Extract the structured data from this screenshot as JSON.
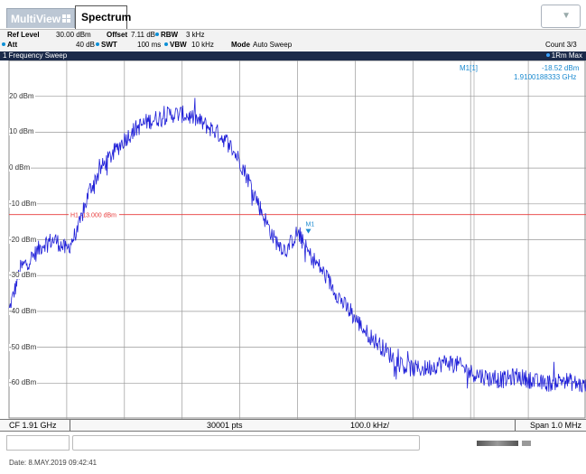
{
  "tabs": {
    "multiview_label": "MultiView",
    "spectrum_label": "Spectrum"
  },
  "settings": {
    "ref_level_label": "Ref Level",
    "ref_level_value": "30.00 dBm",
    "offset_label": "Offset",
    "offset_value": "7.11 dB",
    "rbw_label": "RBW",
    "rbw_value": "3 kHz",
    "att_label": "Att",
    "att_value": "40 dB",
    "swt_label": "SWT",
    "swt_value": "100 ms",
    "vbw_label": "VBW",
    "vbw_value": "10 kHz",
    "mode_label": "Mode",
    "mode_value": "Auto Sweep",
    "count_value": "Count 3/3"
  },
  "sweep": {
    "title": "1 Frequency Sweep",
    "trace_label": "1Rm Max"
  },
  "marker": {
    "id": "M1[1]",
    "level": "-18.52 dBm",
    "freq": "1.9100188333 GHz",
    "plot_label": "M1"
  },
  "threshold": {
    "label": "H1 -13.000 dBm",
    "value": -13
  },
  "y_labels": [
    "20 dBm",
    "10 dBm",
    "0 dBm",
    "-10 dBm",
    "-20 dBm",
    "-30 dBm",
    "-40 dBm",
    "-50 dBm",
    "-60 dBm"
  ],
  "footer": {
    "cf": "CF 1.91 GHz",
    "points": "30001 pts",
    "per_div": "100.0 kHz/",
    "span": "Span 1.0 MHz"
  },
  "status": {
    "date": "Date: 8.MAY.2019  09:42:41"
  },
  "colors": {
    "trace": "#1f1fd8",
    "threshold": "#e83a3a",
    "marker": "#1a8ad0",
    "title_bar": "#1b2a4a"
  },
  "chart_data": {
    "type": "line",
    "xlabel": "",
    "ylabel": "",
    "x_unit": "GHz",
    "y_unit": "dBm",
    "x_center": 1.91,
    "x_span_mhz": 1.0,
    "ylim": [
      -70,
      30
    ],
    "grid": true,
    "series": [
      {
        "x_offset_mhz": [
          -0.5,
          -0.48,
          -0.46,
          -0.44,
          -0.42,
          -0.4,
          -0.38,
          -0.36,
          -0.34,
          -0.32,
          -0.3,
          -0.28,
          -0.26,
          -0.24,
          -0.22,
          -0.2,
          -0.18,
          -0.16,
          -0.14,
          -0.12,
          -0.1,
          -0.08,
          -0.06,
          -0.04,
          -0.02,
          0.0,
          0.02,
          0.04,
          0.06,
          0.08,
          0.1,
          0.12,
          0.14,
          0.16,
          0.18,
          0.2,
          0.22,
          0.24,
          0.26,
          0.28,
          0.3,
          0.32,
          0.34,
          0.36,
          0.38,
          0.4,
          0.42,
          0.44,
          0.46,
          0.48,
          0.5
        ],
        "values": [
          -40,
          -28,
          -25,
          -21,
          -20,
          -23,
          -17,
          -6,
          0,
          4,
          8,
          11,
          13,
          14,
          15,
          15,
          14,
          12,
          10,
          7,
          2,
          -5,
          -13,
          -20,
          -23,
          -18,
          -24,
          -28,
          -33,
          -38,
          -42,
          -46,
          -49,
          -52,
          -55,
          -56,
          -56,
          -55,
          -54,
          -55,
          -57,
          -58,
          -59,
          -59,
          -58,
          -59,
          -60,
          -60,
          -59,
          -60,
          -61
        ]
      }
    ]
  }
}
